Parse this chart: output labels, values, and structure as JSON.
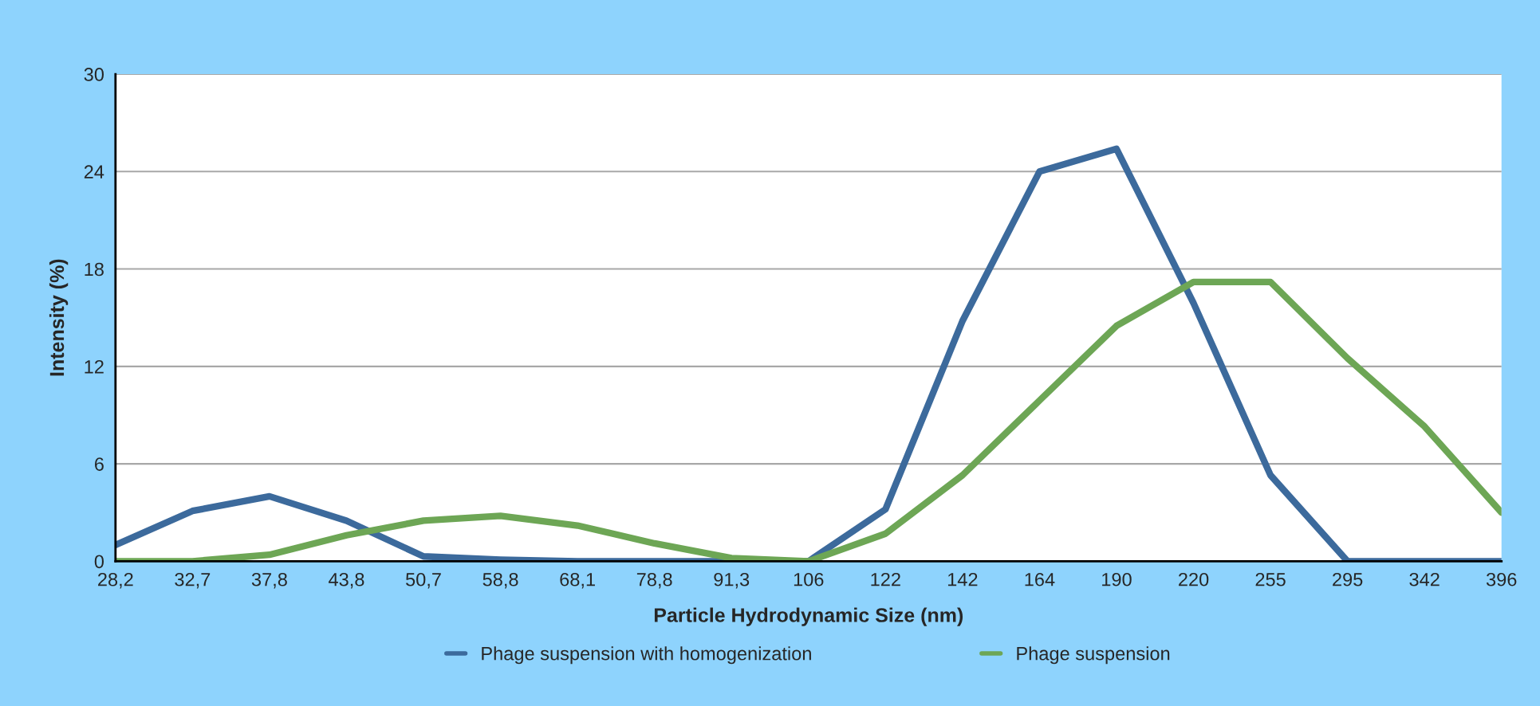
{
  "chart_data": {
    "type": "line",
    "xlabel": "Particle Hydrodynamic Size (nm)",
    "ylabel": "Intensity (%)",
    "categories": [
      "28,2",
      "32,7",
      "37,8",
      "43,8",
      "50,7",
      "58,8",
      "68,1",
      "78,8",
      "91,3",
      "106",
      "122",
      "142",
      "164",
      "190",
      "220",
      "255",
      "295",
      "342",
      "396"
    ],
    "series": [
      {
        "name": "Phage suspension with homogenization",
        "color": "#3c6a9c",
        "values": [
          1.0,
          3.1,
          4.0,
          2.5,
          0.3,
          0.1,
          0,
          0,
          0,
          0,
          3.2,
          14.8,
          24.0,
          25.4,
          15.9,
          5.3,
          0,
          0,
          0
        ]
      },
      {
        "name": "Phage suspension",
        "color": "#6da655",
        "values": [
          0,
          0,
          0.4,
          1.6,
          2.5,
          2.8,
          2.2,
          1.1,
          0.2,
          0,
          1.7,
          5.3,
          9.9,
          14.5,
          17.2,
          17.2,
          12.5,
          8.3,
          3.0
        ]
      }
    ],
    "ylim": [
      0,
      30
    ],
    "yticks": [
      0,
      6,
      12,
      18,
      24,
      30
    ],
    "grid": "y",
    "legend": "bottom",
    "line_style": "solid",
    "marker": "none"
  }
}
